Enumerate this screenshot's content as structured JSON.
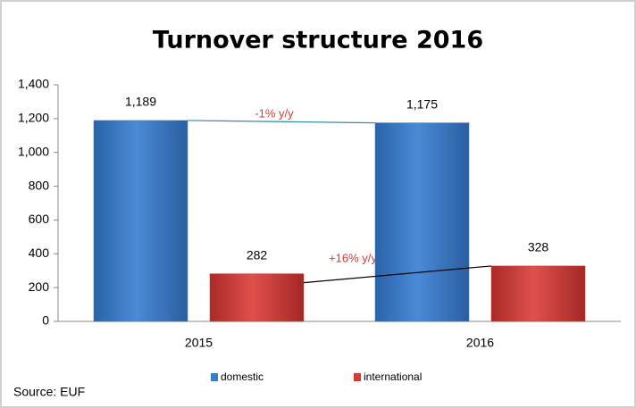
{
  "chart_data": {
    "type": "bar",
    "title": "Turnover structure 2016",
    "categories": [
      "2015",
      "2016"
    ],
    "series": [
      {
        "name": "domestic",
        "color": "#3b7bc8",
        "values": [
          1189,
          1175
        ],
        "value_labels": [
          "1,189",
          "1,175"
        ]
      },
      {
        "name": "international",
        "color": "#d23b37",
        "values": [
          282,
          328
        ]
      }
    ],
    "ylim": [
      0,
      1400
    ],
    "yticks": [
      0,
      200,
      400,
      600,
      800,
      {
        "value": 1000,
        "label": "1,000"
      },
      {
        "value": 1200,
        "label": "1,200"
      },
      {
        "value": 1400,
        "label": "1,400"
      }
    ],
    "grid": false,
    "annotations": [
      "-1% y/y",
      "+16% y/y"
    ],
    "source": "Source: EUF",
    "legend": "bottom"
  }
}
